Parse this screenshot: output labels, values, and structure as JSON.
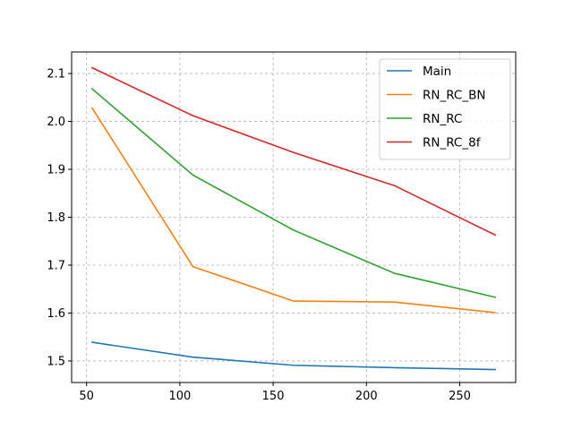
{
  "chart_data": {
    "type": "line",
    "title": "",
    "xlabel": "",
    "ylabel": "",
    "xlim": [
      42,
      280
    ],
    "ylim": [
      1.455,
      2.145
    ],
    "xticks": [
      50,
      100,
      150,
      200,
      250
    ],
    "xtick_labels": [
      "50",
      "100",
      "150",
      "200",
      "250"
    ],
    "yticks": [
      1.5,
      1.6,
      1.7,
      1.8,
      1.9,
      2.0,
      2.1
    ],
    "ytick_labels": [
      "1.5",
      "1.6",
      "1.7",
      "1.8",
      "1.9",
      "2.0",
      "2.1"
    ],
    "grid": true,
    "legend_position": "upper right",
    "x": [
      53,
      107,
      161,
      215,
      269
    ],
    "series": [
      {
        "name": "Main",
        "color": "#1f77b4",
        "values": [
          1.539,
          1.508,
          1.491,
          1.486,
          1.482
        ]
      },
      {
        "name": "RN_RC_BN",
        "color": "#ff7f0e",
        "values": [
          2.028,
          1.697,
          1.625,
          1.623,
          1.601
        ]
      },
      {
        "name": "RN_RC",
        "color": "#2ca02c",
        "values": [
          2.068,
          1.888,
          1.773,
          1.683,
          1.633
        ]
      },
      {
        "name": "RN_RC_8f",
        "color": "#d62728",
        "values": [
          2.112,
          2.012,
          1.935,
          1.866,
          1.763
        ]
      }
    ]
  }
}
